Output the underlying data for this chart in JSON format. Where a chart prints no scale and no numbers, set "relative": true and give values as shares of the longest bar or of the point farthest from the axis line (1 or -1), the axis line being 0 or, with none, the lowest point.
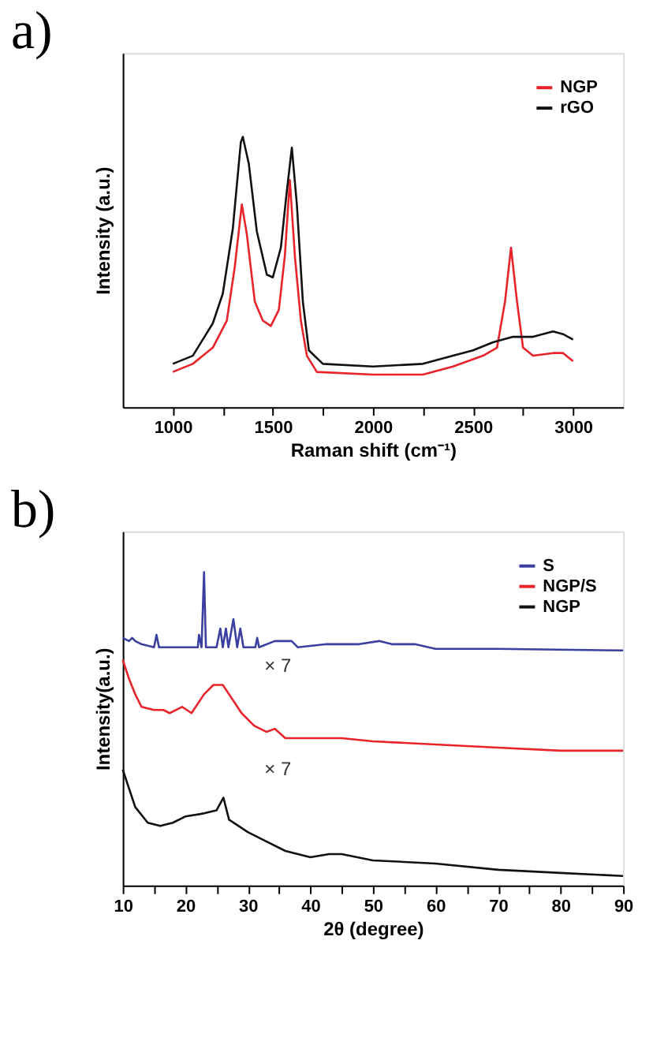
{
  "chart_data": [
    {
      "type": "line",
      "title": "a)",
      "xlabel": "Raman shift (cm⁻¹)",
      "ylabel": "Intensity (a.u.)",
      "relative": true,
      "grid": false,
      "legend": "top right",
      "line_style": "solid",
      "marker": "none",
      "xlim": [
        750,
        3250
      ],
      "xticks": [
        1000,
        {
          "value": 1250,
          "label": null
        },
        1500,
        {
          "value": 1750,
          "label": null
        },
        2000,
        {
          "value": 2250,
          "label": null
        },
        2500,
        {
          "value": 2750,
          "label": null
        },
        3000
      ],
      "series": [
        {
          "name": "NGP",
          "color": "#e8232a",
          "x": [
            1000,
            1100,
            1200,
            1270,
            1310,
            1345,
            1370,
            1410,
            1450,
            1490,
            1530,
            1560,
            1585,
            1610,
            1640,
            1670,
            1720,
            2000,
            2250,
            2400,
            2550,
            2620,
            2660,
            2690,
            2720,
            2750,
            2800,
            2900,
            2950,
            3000
          ],
          "values": [
            0.13,
            0.16,
            0.22,
            0.32,
            0.52,
            0.75,
            0.64,
            0.39,
            0.32,
            0.3,
            0.36,
            0.56,
            0.84,
            0.56,
            0.32,
            0.19,
            0.13,
            0.12,
            0.12,
            0.15,
            0.19,
            0.22,
            0.39,
            0.59,
            0.39,
            0.22,
            0.19,
            0.2,
            0.2,
            0.17
          ]
        },
        {
          "name": "rGO",
          "color": "#111111",
          "x": [
            1000,
            1100,
            1200,
            1250,
            1300,
            1340,
            1350,
            1380,
            1420,
            1470,
            1500,
            1540,
            1570,
            1595,
            1620,
            1650,
            1680,
            1750,
            2000,
            2250,
            2400,
            2500,
            2600,
            2700,
            2800,
            2900,
            2950,
            3000
          ],
          "values": [
            0.16,
            0.19,
            0.31,
            0.42,
            0.66,
            0.98,
            1.0,
            0.9,
            0.65,
            0.49,
            0.48,
            0.59,
            0.8,
            0.96,
            0.75,
            0.39,
            0.21,
            0.16,
            0.15,
            0.16,
            0.19,
            0.21,
            0.24,
            0.26,
            0.26,
            0.28,
            0.27,
            0.25
          ]
        }
      ]
    },
    {
      "type": "line",
      "title": "b)",
      "xlabel": "2θ (degree)",
      "ylabel": "Intensity(a.u.)",
      "relative": true,
      "grid": false,
      "legend": "top right",
      "line_style": "solid",
      "marker": "none",
      "xlim": [
        10,
        90
      ],
      "xticks": [
        10,
        {
          "value": 15,
          "label": null
        },
        20,
        {
          "value": 25,
          "label": null
        },
        30,
        {
          "value": 35,
          "label": null
        },
        40,
        {
          "value": 45,
          "label": null
        },
        50,
        {
          "value": 55,
          "label": null
        },
        60,
        {
          "value": 65,
          "label": null
        },
        70,
        {
          "value": 75,
          "label": null
        },
        80,
        {
          "value": 85,
          "label": null
        },
        90
      ],
      "annotations": [
        "× 7",
        "× 7"
      ],
      "series": [
        {
          "name": "S",
          "color": "#3a3fa0",
          "x": [
            10,
            11,
            11.5,
            12,
            13,
            15,
            15.4,
            15.8,
            22,
            22.2,
            22.6,
            23,
            23.3,
            25,
            25.6,
            26,
            26.5,
            26.9,
            27.7,
            28.3,
            28.8,
            29.3,
            31.2,
            31.5,
            31.8,
            34.3,
            36,
            37,
            38,
            42.6,
            47.8,
            51,
            53,
            56.7,
            60,
            70,
            90
          ],
          "values": [
            0.79,
            0.78,
            0.79,
            0.78,
            0.77,
            0.76,
            0.8,
            0.76,
            0.76,
            0.8,
            0.76,
            1.0,
            0.76,
            0.76,
            0.82,
            0.76,
            0.82,
            0.76,
            0.85,
            0.76,
            0.82,
            0.76,
            0.76,
            0.79,
            0.76,
            0.78,
            0.78,
            0.78,
            0.76,
            0.77,
            0.77,
            0.78,
            0.77,
            0.77,
            0.755,
            0.755,
            0.75
          ]
        },
        {
          "name": "NGP/S",
          "color": "#e8232a",
          "x": [
            10,
            11,
            12,
            13,
            15,
            16.5,
            17.5,
            19.5,
            21,
            23,
            24.5,
            26,
            27,
            29,
            31,
            33,
            34.3,
            36,
            40,
            45,
            50,
            60,
            70,
            80,
            90
          ],
          "values": [
            0.72,
            0.66,
            0.61,
            0.57,
            0.56,
            0.56,
            0.55,
            0.57,
            0.55,
            0.61,
            0.64,
            0.64,
            0.61,
            0.55,
            0.51,
            0.49,
            0.5,
            0.47,
            0.47,
            0.47,
            0.46,
            0.45,
            0.44,
            0.43,
            0.43
          ]
        },
        {
          "name": "NGP",
          "color": "#111111",
          "x": [
            10,
            11,
            12,
            14,
            16,
            18,
            20,
            23,
            25,
            26.1,
            27,
            30,
            33,
            36,
            40,
            43,
            45,
            50,
            60,
            70,
            80,
            90
          ],
          "values": [
            0.37,
            0.31,
            0.25,
            0.2,
            0.19,
            0.2,
            0.22,
            0.23,
            0.24,
            0.28,
            0.21,
            0.17,
            0.14,
            0.11,
            0.09,
            0.1,
            0.1,
            0.08,
            0.07,
            0.05,
            0.04,
            0.03
          ]
        }
      ]
    }
  ]
}
